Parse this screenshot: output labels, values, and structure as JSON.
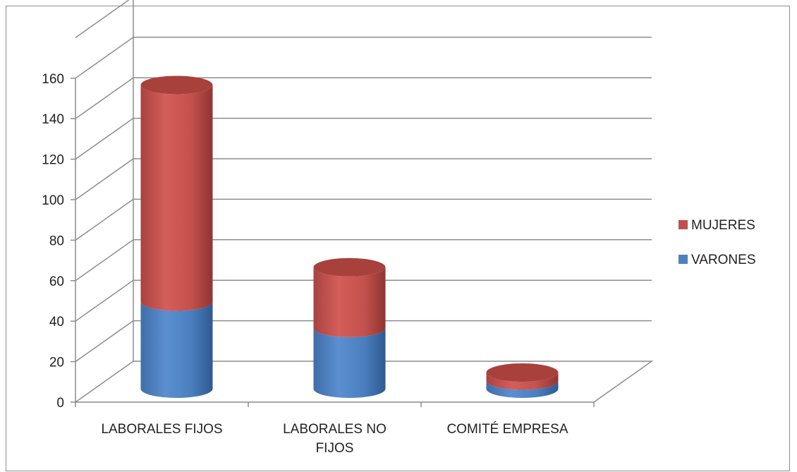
{
  "chart_data": {
    "type": "bar",
    "stacked": true,
    "three_d": "cylinder",
    "categories": [
      "LABORALES FIJOS",
      "LABORALES NO FIJOS",
      "COMITÉ EMPRESA"
    ],
    "category_label_lines": [
      [
        "LABORALES FIJOS"
      ],
      [
        "LABORALES NO",
        "FIJOS"
      ],
      [
        "COMITÉ EMPRESA"
      ]
    ],
    "series": [
      {
        "name": "VARONES",
        "values": [
          43,
          30,
          4
        ],
        "color": "#4f81bd"
      },
      {
        "name": "MUJERES",
        "values": [
          107,
          30,
          4
        ],
        "color": "#c0504d"
      }
    ],
    "yticks": [
      "0",
      "20",
      "40",
      "60",
      "80",
      "100",
      "120",
      "140",
      "160"
    ],
    "ylim": [
      0,
      180
    ],
    "grid": true,
    "legend_position": "right",
    "legend_order": [
      "MUJERES",
      "VARONES"
    ]
  }
}
